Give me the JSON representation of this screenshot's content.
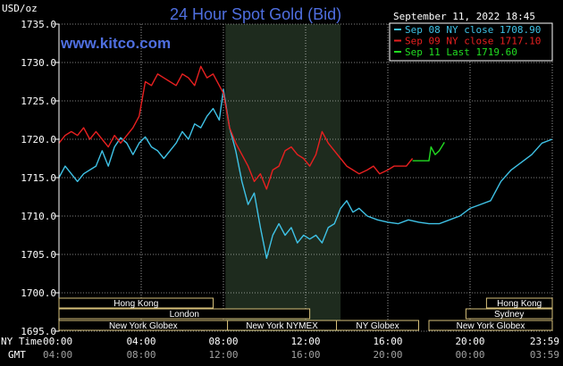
{
  "chart_data": {
    "type": "line",
    "title": "24 Hour Spot Gold (Bid)",
    "brand": "www.kitco.com",
    "unit_label": "USD/oz",
    "timestamp": "September 11, 2022 18:45",
    "ylim": [
      1695,
      1735
    ],
    "y_ticks": [
      "1735.0",
      "1730.0",
      "1725.0",
      "1720.0",
      "1715.0",
      "1710.0",
      "1705.0",
      "1700.0",
      "1695.0"
    ],
    "x_axis_row1_label": "NY Time",
    "x_axis_row2_label": "GMT",
    "x_ticks_ny": [
      "00:00",
      "04:00",
      "08:00",
      "12:00",
      "16:00",
      "20:00",
      "23:59"
    ],
    "x_ticks_gmt": [
      "04:00",
      "08:00",
      "12:00",
      "16:00",
      "20:00",
      "00:00",
      "03:59"
    ],
    "xlim_hours": [
      0,
      24
    ],
    "shaded_region_hours": [
      8.1,
      13.7
    ],
    "legend": [
      {
        "label": "Sep 08 NY close 1708.90",
        "color": "#3fc2e6"
      },
      {
        "label": "Sep 09 NY close 1717.10",
        "color": "#e82020"
      },
      {
        "label": "Sep 11 Last 1719.60",
        "color": "#22dd22"
      }
    ],
    "series": [
      {
        "name": "Sep 08 NY close 1708.90",
        "color": "#3fc2e6",
        "x": [
          0,
          0.3,
          0.6,
          0.9,
          1.2,
          1.5,
          1.8,
          2.1,
          2.4,
          2.7,
          3.0,
          3.3,
          3.6,
          3.9,
          4.2,
          4.5,
          4.8,
          5.1,
          5.4,
          5.7,
          6.0,
          6.3,
          6.6,
          6.9,
          7.2,
          7.5,
          7.8,
          8.0,
          8.3,
          8.6,
          8.9,
          9.2,
          9.5,
          9.8,
          10.1,
          10.4,
          10.7,
          11.0,
          11.3,
          11.6,
          11.9,
          12.2,
          12.5,
          12.8,
          13.1,
          13.4,
          13.7,
          14.0,
          14.3,
          14.6,
          15.0,
          15.5,
          16.0,
          16.5,
          17.0,
          17.5,
          18.0,
          18.5,
          19.0,
          19.5,
          20.0,
          20.5,
          21.0,
          21.5,
          22.0,
          22.5,
          23.0,
          23.5,
          23.99
        ],
        "y": [
          1715.0,
          1716.5,
          1715.5,
          1714.5,
          1715.5,
          1716.0,
          1716.5,
          1718.5,
          1716.5,
          1719.0,
          1720.2,
          1719.5,
          1718.0,
          1719.5,
          1720.3,
          1719.0,
          1718.5,
          1717.5,
          1718.5,
          1719.5,
          1721.0,
          1720.0,
          1722.0,
          1721.5,
          1723.0,
          1724.0,
          1722.5,
          1726.5,
          1721.5,
          1718.5,
          1714.5,
          1711.5,
          1713.0,
          1708.5,
          1704.5,
          1707.5,
          1709.0,
          1707.5,
          1708.5,
          1706.5,
          1707.5,
          1707.0,
          1707.5,
          1706.5,
          1708.5,
          1709.0,
          1711.0,
          1712.0,
          1710.5,
          1711.0,
          1710.0,
          1709.5,
          1709.2,
          1709.0,
          1709.5,
          1709.2,
          1709.0,
          1709.0,
          1709.5,
          1710.0,
          1711.0,
          1711.5,
          1712.0,
          1714.5,
          1716.0,
          1717.0,
          1718.0,
          1719.5,
          1720.0
        ]
      },
      {
        "name": "Sep 09 NY close 1717.10",
        "color": "#e82020",
        "x": [
          0,
          0.3,
          0.6,
          0.9,
          1.2,
          1.5,
          1.8,
          2.1,
          2.4,
          2.7,
          3.0,
          3.3,
          3.6,
          3.9,
          4.2,
          4.5,
          4.8,
          5.1,
          5.4,
          5.7,
          6.0,
          6.3,
          6.6,
          6.9,
          7.2,
          7.5,
          7.8,
          8.0,
          8.3,
          8.6,
          8.9,
          9.2,
          9.5,
          9.8,
          10.1,
          10.4,
          10.7,
          11.0,
          11.3,
          11.6,
          11.9,
          12.2,
          12.5,
          12.8,
          13.1,
          13.4,
          13.7,
          14.0,
          14.3,
          14.6,
          15.0,
          15.3,
          15.6,
          16.0,
          16.3,
          16.6,
          16.9,
          17.2
        ],
        "y": [
          1719.5,
          1720.5,
          1721.0,
          1720.5,
          1721.5,
          1720.0,
          1721.0,
          1720.0,
          1719.0,
          1720.5,
          1719.5,
          1720.5,
          1721.5,
          1723.0,
          1727.5,
          1727.0,
          1728.5,
          1728.0,
          1727.5,
          1727.0,
          1728.5,
          1728.0,
          1727.0,
          1729.5,
          1728.0,
          1728.5,
          1727.0,
          1726.0,
          1721.5,
          1719.5,
          1718.0,
          1716.5,
          1714.5,
          1715.5,
          1713.5,
          1716.0,
          1716.5,
          1718.5,
          1719.0,
          1718.0,
          1717.5,
          1716.5,
          1718.0,
          1721.0,
          1719.5,
          1718.5,
          1717.5,
          1716.5,
          1716.0,
          1715.5,
          1716.0,
          1716.5,
          1715.5,
          1716.0,
          1716.5,
          1716.5,
          1716.5,
          1717.5
        ]
      },
      {
        "name": "Sep 11 Last 1719.60",
        "color": "#22dd22",
        "x": [
          17.2,
          17.4,
          17.6,
          17.8,
          18.0,
          18.1,
          18.3,
          18.5,
          18.75
        ],
        "y": [
          1717.2,
          1717.2,
          1717.2,
          1717.2,
          1717.2,
          1719.0,
          1718.0,
          1718.5,
          1719.6
        ]
      }
    ],
    "sessions": [
      {
        "label": "Hong Kong",
        "start": 0,
        "end": 7.5
      },
      {
        "label": "Hong Kong",
        "start": 20.8,
        "end": 24
      },
      {
        "label": "London",
        "start": 0,
        "end": 8.2
      },
      {
        "label": "Sydney",
        "start": 19.8,
        "end": 24
      },
      {
        "label": "London",
        "start": 0,
        "end": 12.2
      },
      {
        "label": "New York Globex",
        "start": 0,
        "end": 8.2
      },
      {
        "label": "New York NYMEX",
        "start": 8.2,
        "end": 13.5
      },
      {
        "label": "NY Globex",
        "start": 13.5,
        "end": 17.5
      },
      {
        "label": "New York Globex",
        "start": 18.0,
        "end": 24
      }
    ]
  }
}
